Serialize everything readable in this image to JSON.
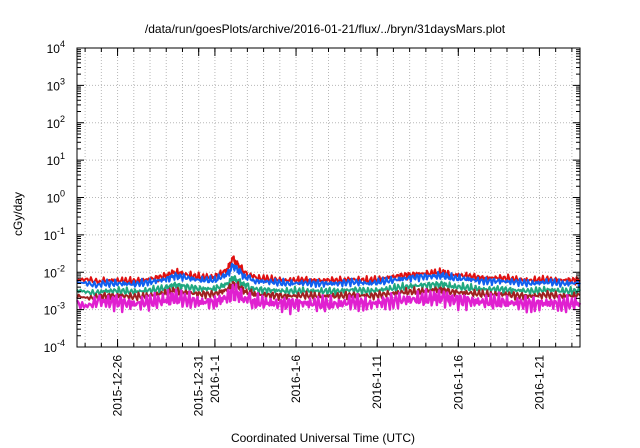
{
  "chart_data": {
    "type": "line",
    "title": "/data/run/goesPlots/archive/2016-01-21/flux/../bryn/31daysMars.plot",
    "xlabel": "Coordinated Universal Time (UTC)",
    "ylabel": "cGy/day",
    "yscale": "log",
    "ylim": [
      0.0001,
      10000
    ],
    "xlim_days": [
      -8.5,
      22.5
    ],
    "x_reference_date": "2016-01-01",
    "grid": true,
    "legend": "none",
    "y_ticks": [
      {
        "base": "10",
        "exp": "-4"
      },
      {
        "base": "10",
        "exp": "-3"
      },
      {
        "base": "10",
        "exp": "-2"
      },
      {
        "base": "10",
        "exp": "-1"
      },
      {
        "base": "10",
        "exp": "0"
      },
      {
        "base": "10",
        "exp": "1"
      },
      {
        "base": "10",
        "exp": "2"
      },
      {
        "base": "10",
        "exp": "3"
      },
      {
        "base": "10",
        "exp": "4"
      }
    ],
    "x_ticks": [
      {
        "day": -6,
        "label": "2015-12-26"
      },
      {
        "day": -1,
        "label": "2015-12-31"
      },
      {
        "day": 0,
        "label": "2016-1-1"
      },
      {
        "day": 5,
        "label": "2016-1-6"
      },
      {
        "day": 10,
        "label": "2016-1-11"
      },
      {
        "day": 15,
        "label": "2016-1-16"
      },
      {
        "day": 20,
        "label": "2016-1-21"
      }
    ],
    "x_day": [
      -8.5,
      -7,
      -6,
      -5,
      -4,
      -3,
      -2.5,
      -2,
      -1,
      0,
      0.8,
      1.1,
      1.4,
      1.8,
      2.5,
      3.5,
      4.5,
      5.5,
      6.5,
      7.5,
      8.5,
      9.5,
      10.5,
      11.5,
      12.5,
      13.5,
      14,
      14.5,
      15.5,
      16.5,
      17.5,
      18.5,
      19.5,
      20.5,
      21.5,
      22.5
    ],
    "series": [
      {
        "name": "series-red",
        "color": "#e01010",
        "values": [
          0.0058,
          0.006,
          0.006,
          0.0058,
          0.0065,
          0.008,
          0.01,
          0.009,
          0.0075,
          0.0075,
          0.012,
          0.024,
          0.016,
          0.01,
          0.007,
          0.0065,
          0.006,
          0.0062,
          0.006,
          0.006,
          0.0065,
          0.006,
          0.007,
          0.008,
          0.009,
          0.0095,
          0.01,
          0.0085,
          0.008,
          0.007,
          0.007,
          0.0065,
          0.006,
          0.0065,
          0.006,
          0.0062
        ]
      },
      {
        "name": "series-blue",
        "color": "#1060f0",
        "values": [
          0.0048,
          0.005,
          0.005,
          0.0048,
          0.0055,
          0.0065,
          0.008,
          0.0075,
          0.0062,
          0.0062,
          0.009,
          0.015,
          0.012,
          0.008,
          0.0058,
          0.0055,
          0.005,
          0.0052,
          0.005,
          0.005,
          0.0055,
          0.005,
          0.0058,
          0.0066,
          0.0075,
          0.0078,
          0.0082,
          0.0072,
          0.0066,
          0.0058,
          0.0058,
          0.0055,
          0.005,
          0.0055,
          0.005,
          0.0052
        ]
      },
      {
        "name": "series-teal",
        "color": "#20a880",
        "values": [
          0.003,
          0.0031,
          0.0032,
          0.003,
          0.0033,
          0.0038,
          0.0045,
          0.0042,
          0.0036,
          0.0036,
          0.005,
          0.007,
          0.006,
          0.0045,
          0.0034,
          0.0033,
          0.0031,
          0.0032,
          0.0031,
          0.0031,
          0.0034,
          0.0031,
          0.0035,
          0.004,
          0.0044,
          0.0046,
          0.0048,
          0.0042,
          0.0039,
          0.0035,
          0.0035,
          0.0033,
          0.0031,
          0.0034,
          0.0031,
          0.0032
        ]
      },
      {
        "name": "series-darkred",
        "color": "#a02020",
        "values": [
          0.0022,
          0.0023,
          0.0024,
          0.0022,
          0.0024,
          0.0028,
          0.0032,
          0.003,
          0.0026,
          0.0026,
          0.0035,
          0.0048,
          0.0042,
          0.0032,
          0.0025,
          0.0024,
          0.0023,
          0.0024,
          0.0023,
          0.0023,
          0.0025,
          0.0023,
          0.0026,
          0.0029,
          0.0031,
          0.0033,
          0.0034,
          0.003,
          0.0028,
          0.0026,
          0.0026,
          0.0024,
          0.0023,
          0.0025,
          0.0023,
          0.0024
        ]
      },
      {
        "name": "series-magenta",
        "color": "#e020d0",
        "values": [
          0.0015,
          0.0016,
          0.0016,
          0.0014,
          0.0016,
          0.0018,
          0.002,
          0.0019,
          0.0016,
          0.0016,
          0.0022,
          0.003,
          0.0026,
          0.002,
          0.0016,
          0.0015,
          0.0014,
          0.0015,
          0.0014,
          0.0014,
          0.0016,
          0.0014,
          0.0016,
          0.0018,
          0.0019,
          0.002,
          0.0021,
          0.0019,
          0.0017,
          0.0016,
          0.0016,
          0.0015,
          0.0014,
          0.0015,
          0.0014,
          0.0015
        ]
      }
    ]
  }
}
